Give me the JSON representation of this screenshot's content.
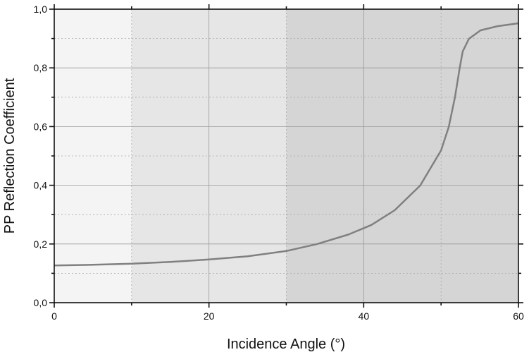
{
  "chart_data": {
    "type": "line",
    "title": "",
    "xlabel": "Incidence Angle (°)",
    "ylabel": "PP Reflection Coefficient",
    "xlim": [
      0,
      60
    ],
    "ylim": [
      0,
      1.0
    ],
    "x_ticks": [
      0,
      20,
      40,
      60
    ],
    "x_tick_labels": [
      "0",
      "20",
      "40",
      "60"
    ],
    "y_ticks": [
      0,
      0.2,
      0.4,
      0.6,
      0.8,
      1.0
    ],
    "y_tick_labels": [
      "0,0",
      "0,2",
      "0,4",
      "0,6",
      "0,8",
      "1,0"
    ],
    "grid": true,
    "shaded_regions": [
      {
        "x": [
          0,
          10
        ],
        "color": "#f4f4f4"
      },
      {
        "x": [
          10,
          30
        ],
        "color": "#e6e6e6"
      },
      {
        "x": [
          30,
          60
        ],
        "color": "#d5d5d5"
      }
    ],
    "series": [
      {
        "color": "#808080",
        "x": [
          0,
          5,
          10,
          15,
          20,
          25,
          30,
          34,
          38,
          41,
          44,
          47.3,
          50,
          51,
          51.8,
          52.4,
          52.8,
          53.6,
          55.1,
          57.3,
          60
        ],
        "y": [
          0.127,
          0.129,
          0.133,
          0.139,
          0.147,
          0.158,
          0.176,
          0.2,
          0.232,
          0.265,
          0.315,
          0.399,
          0.519,
          0.599,
          0.7,
          0.798,
          0.856,
          0.899,
          0.928,
          0.942,
          0.952
        ]
      }
    ]
  }
}
